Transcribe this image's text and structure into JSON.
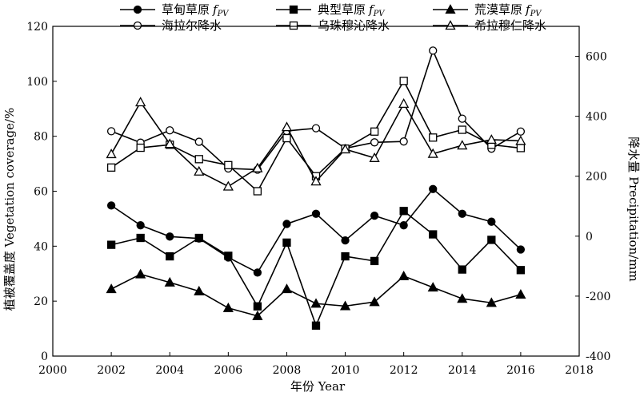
{
  "chart_data": {
    "type": "line",
    "x": [
      2002,
      2003,
      2004,
      2005,
      2006,
      2007,
      2008,
      2009,
      2010,
      2011,
      2012,
      2013,
      2014,
      2015,
      2016
    ],
    "xlabel": "年份 Year",
    "ylabel_left": "植被覆盖度 Vegetation coverage/%",
    "ylabel_right": "降水量 Precipitation/mm",
    "xlim": [
      2000,
      2018
    ],
    "xticks": [
      "2000",
      "2002",
      "2004",
      "2006",
      "2008",
      "2010",
      "2012",
      "2014",
      "2016",
      "2018"
    ],
    "ylim_left": [
      0,
      120
    ],
    "yticks_left": [
      "0",
      "20",
      "40",
      "60",
      "80",
      "100",
      "120"
    ],
    "ylim_right": [
      -400,
      700
    ],
    "yticks_right": [
      "-400",
      "-200",
      "0",
      "200",
      "400",
      "600"
    ],
    "legend_position": "top",
    "series": [
      {
        "name": "草甸草原",
        "sub": "f",
        "subscript": "PV",
        "axis": "left",
        "marker": "circle-filled",
        "values": [
          54.8,
          47.6,
          43.5,
          42.8,
          35.9,
          30.4,
          48.1,
          51.8,
          42.1,
          51.1,
          47.6,
          60.8,
          51.8,
          48.9,
          38.8
        ]
      },
      {
        "name": "典型草原",
        "sub": "f",
        "subscript": "PV",
        "axis": "left",
        "marker": "square-filled",
        "values": [
          40.5,
          43.0,
          36.3,
          43.0,
          36.5,
          18.1,
          41.3,
          11.1,
          36.3,
          34.6,
          52.8,
          44.3,
          31.5,
          42.3,
          31.3
        ]
      },
      {
        "name": "荒漠草原",
        "sub": "f",
        "subscript": "PV",
        "axis": "left",
        "marker": "triangle-filled",
        "values": [
          24.4,
          29.8,
          26.8,
          23.6,
          17.5,
          14.6,
          24.4,
          19.1,
          18.2,
          19.7,
          29.1,
          25.0,
          20.9,
          19.4,
          22.4
        ]
      },
      {
        "name": "海拉尔降水",
        "axis": "right",
        "marker": "circle-open",
        "values": [
          350,
          312,
          353,
          315,
          226,
          222,
          351,
          360,
          293,
          313,
          316,
          619,
          392,
          292,
          349
        ]
      },
      {
        "name": "乌珠穆沁降水",
        "axis": "right",
        "marker": "square-open",
        "values": [
          229,
          295,
          305,
          257,
          237,
          150,
          327,
          200,
          292,
          349,
          518,
          329,
          355,
          305,
          294
        ]
      },
      {
        "name": "希拉穆仁降水",
        "axis": "right",
        "marker": "triangle-open",
        "values": [
          274,
          447,
          308,
          216,
          166,
          227,
          364,
          183,
          290,
          261,
          442,
          275,
          303,
          322,
          318
        ]
      }
    ]
  }
}
